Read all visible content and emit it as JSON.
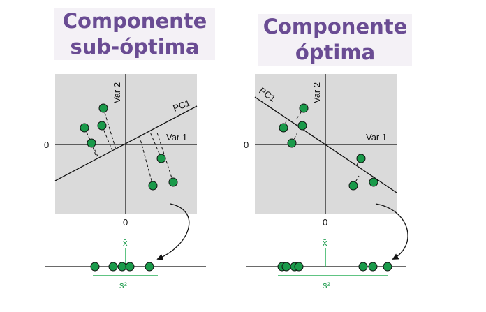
{
  "panels": [
    {
      "title_line1": "Componente",
      "title_line2": "sub-óptima",
      "axis_x_label": "Var 1",
      "axis_y_label": "Var 2",
      "pc_label": "PC1",
      "zero_x": "0",
      "zero_y": "0",
      "mean_label": "x̄",
      "variance_label": "s²"
    },
    {
      "title_line1": "Componente",
      "title_line2": "óptima",
      "axis_x_label": "Var 1",
      "axis_y_label": "Var 2",
      "pc_label": "PC1",
      "zero_x": "0",
      "zero_y": "0",
      "mean_label": "x̄",
      "variance_label": "s²"
    }
  ],
  "colors": {
    "title": "#6a4c93",
    "point": "#1a9a4a",
    "mean_line": "#2bb05a",
    "plot_bg": "#dadada"
  }
}
